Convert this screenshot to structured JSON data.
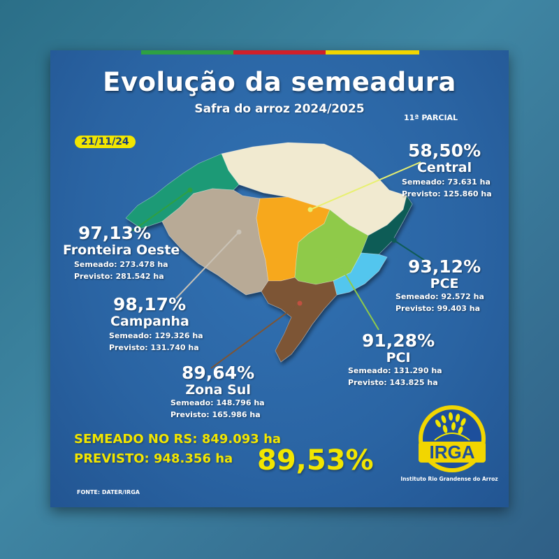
{
  "header": {
    "title": "Evolução da semeadura",
    "subtitle": "Safra do arroz 2024/2025",
    "parcial": "11ª PARCIAL",
    "date": "21/11/24"
  },
  "regions": [
    {
      "id": "central",
      "pct": "58,50%",
      "name": "Central",
      "semeado": "Semeado: 73.631 ha",
      "previsto": "Previsto: 125.860 ha",
      "color": "#f1ead0"
    },
    {
      "id": "fronteira-oeste",
      "pct": "97,13%",
      "name": "Fronteira Oeste",
      "semeado": "Semeado: 273.478 ha",
      "previsto": "Previsto:  281.542 ha",
      "color": "#1f9a76"
    },
    {
      "id": "pce",
      "pct": "93,12%",
      "name": "PCE",
      "semeado": "Semeado: 92.572 ha",
      "previsto": "Previsto:  99.403 ha",
      "color": "#0f5b56"
    },
    {
      "id": "campanha",
      "pct": "98,17%",
      "name": "Campanha",
      "semeado": "Semeado: 129.326 ha",
      "previsto": "Previsto: 131.740 ha",
      "color": "#b8aa96"
    },
    {
      "id": "pci",
      "pct": "91,28%",
      "name": "PCI",
      "semeado": "Semeado: 131.290 ha",
      "previsto": "Previsto:  143.825 ha",
      "color": "#8fca4a"
    },
    {
      "id": "zona-sul",
      "pct": "89,64%",
      "name": "Zona Sul",
      "semeado": "Semeado: 148.796 ha",
      "previsto": "Previsto:  165.986 ha",
      "color": "#7d5535"
    }
  ],
  "totals": {
    "semeado": "SEMEADO NO RS: 849.093 ha",
    "previsto": "PREVISTO: 948.356 ha",
    "pct": "89,53%"
  },
  "footer": {
    "fonte": "FONTE: DATER/IRGA"
  },
  "logo": {
    "text": "IRGA",
    "subtitle": "Instituto Rio Grandense do Arroz"
  },
  "colors": {
    "background": "#2a64a3",
    "accent_yellow": "#f2e600",
    "flag_green": "#2ea043",
    "flag_red": "#d0202a",
    "flag_yellow": "#f2d600",
    "orange_region": "#f7a81e",
    "light_blue_region": "#52c6ee"
  }
}
